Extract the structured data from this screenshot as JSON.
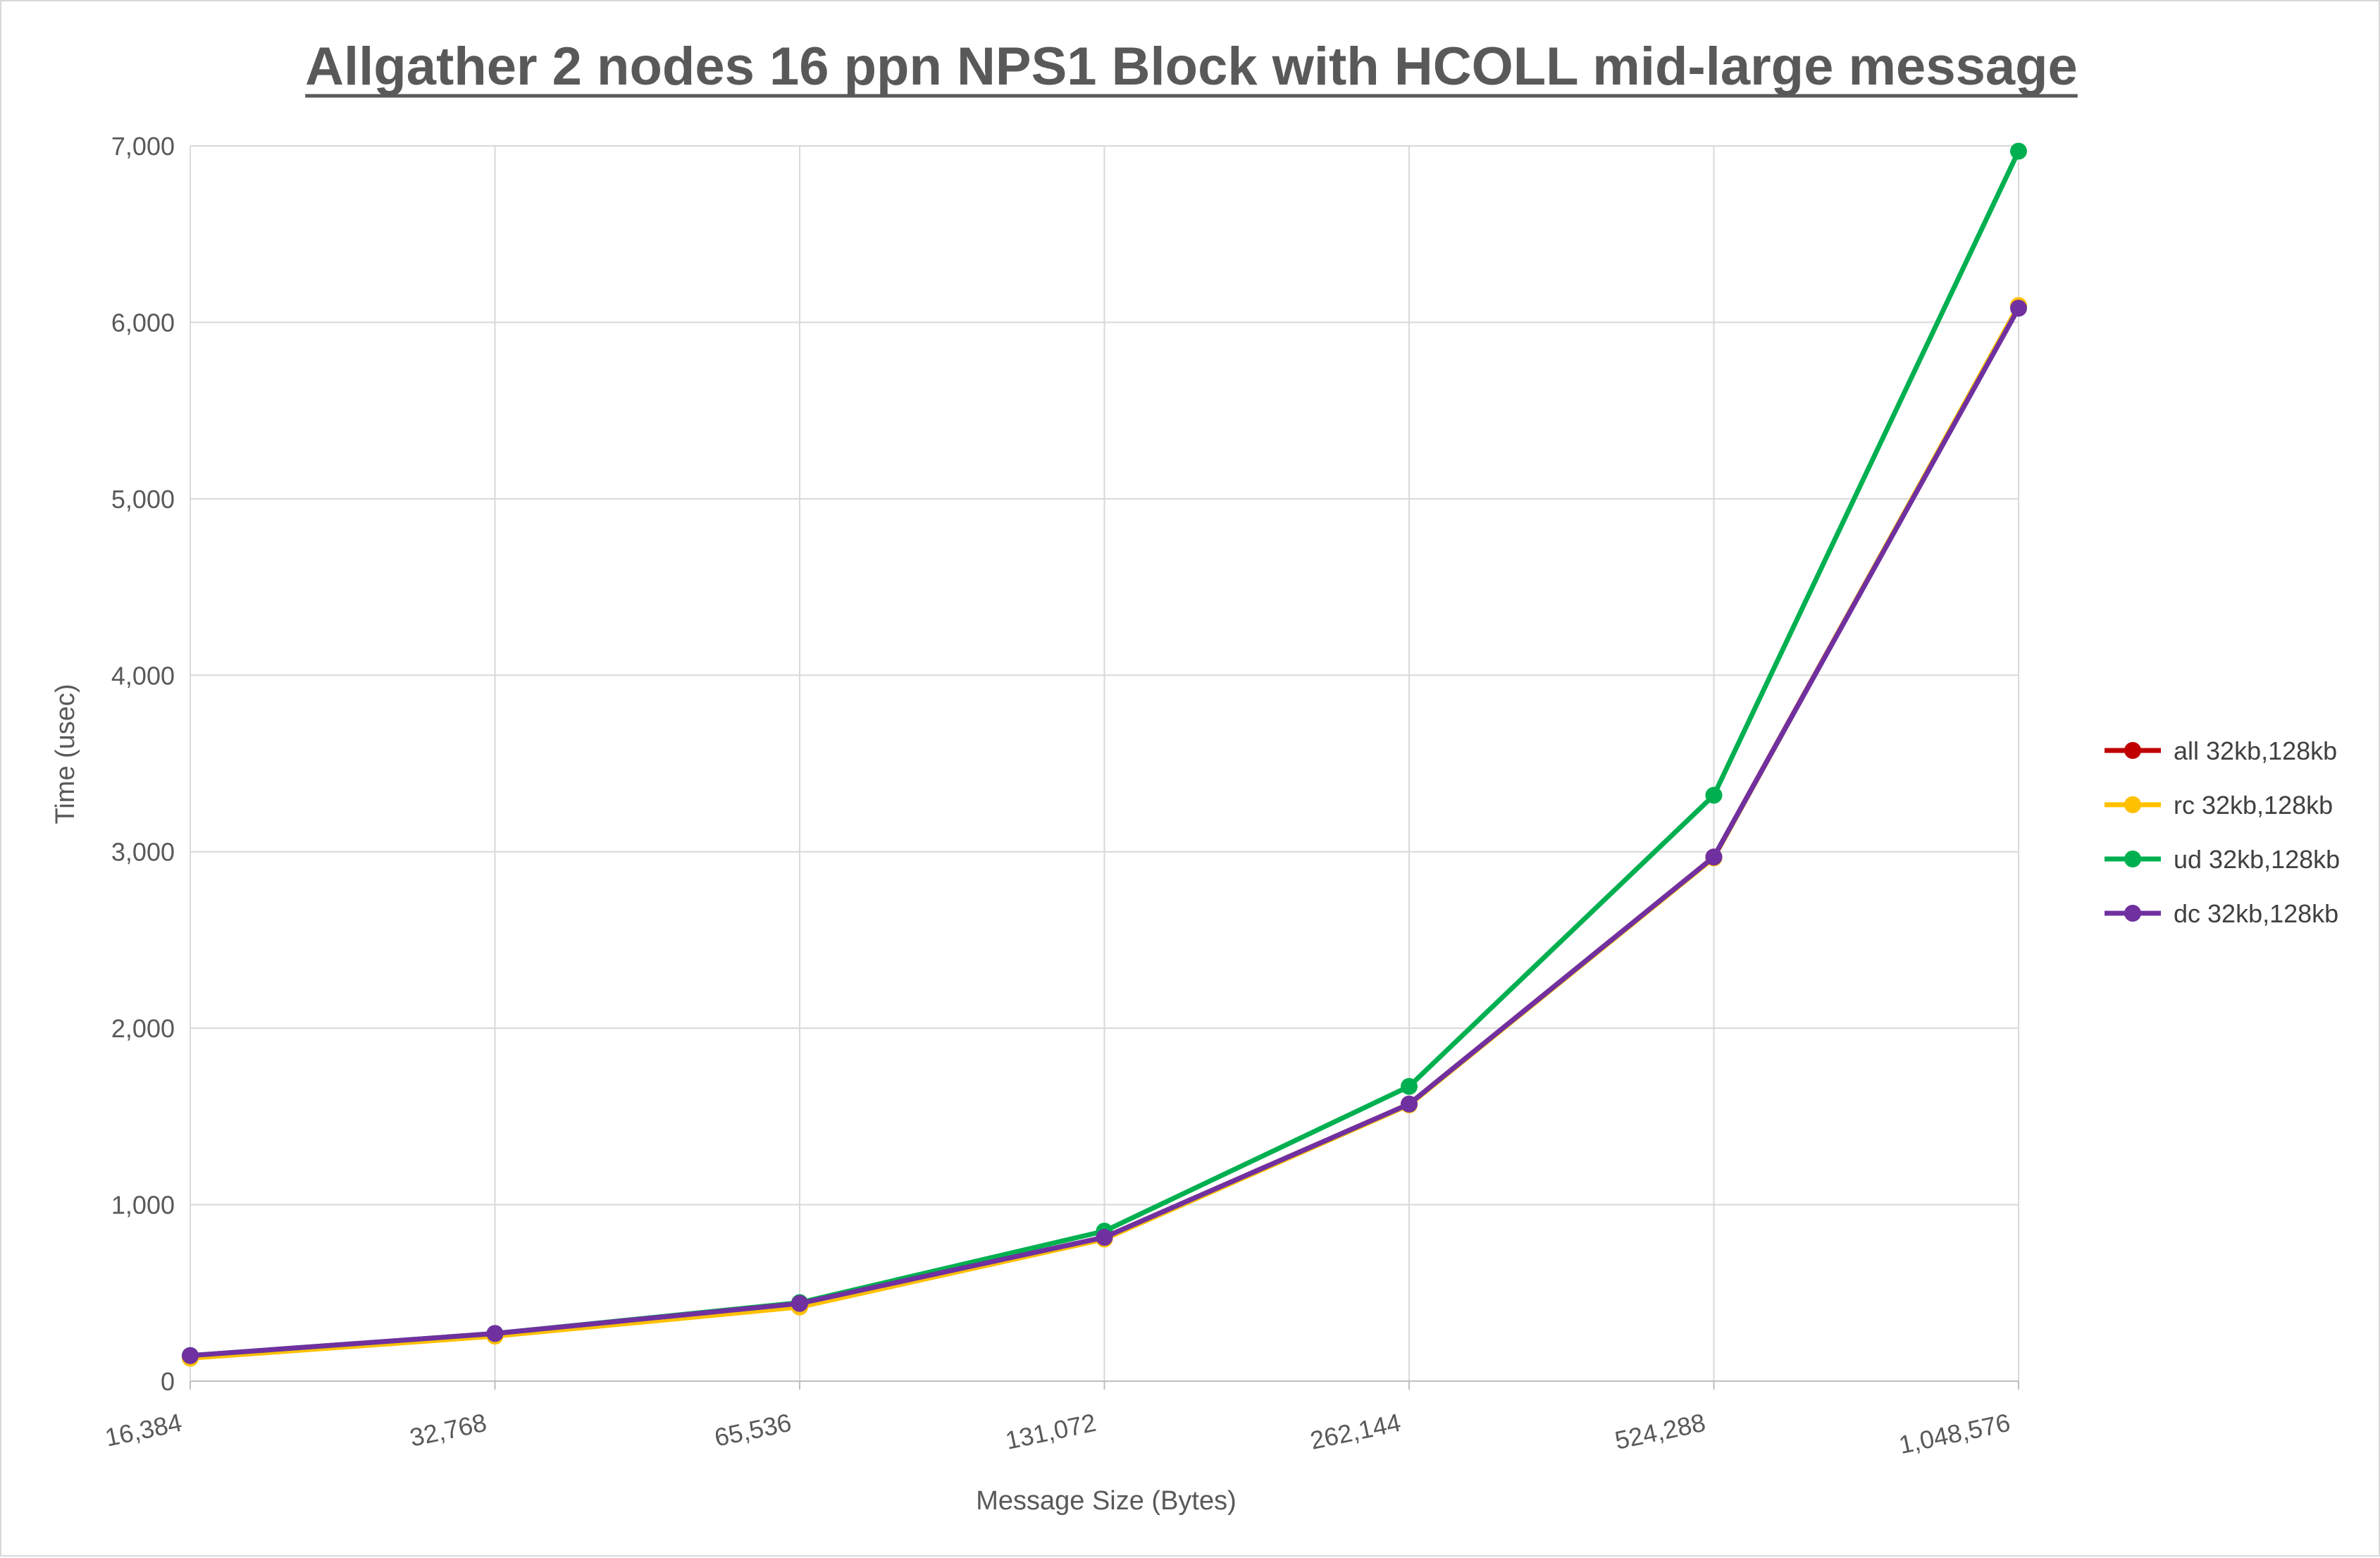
{
  "chart_data": {
    "type": "line",
    "title": "Allgather 2 nodes 16 ppn NPS1 Block with HCOLL mid-large message",
    "xlabel": "Message Size (Bytes)",
    "ylabel": "Time (usec)",
    "categories": [
      "16,384",
      "32,768",
      "65,536",
      "131,072",
      "262,144",
      "524,288",
      "1,048,576"
    ],
    "ylim": [
      0,
      7000
    ],
    "yticks": [
      0,
      1000,
      2000,
      3000,
      4000,
      5000,
      6000,
      7000
    ],
    "ytick_labels": [
      "0",
      "1,000",
      "2,000",
      "3,000",
      "4,000",
      "5,000",
      "6,000",
      "7,000"
    ],
    "grid": true,
    "legend_position": "right",
    "series": [
      {
        "name": "all 32kb,128kb",
        "color": "#c00000",
        "values": [
          140,
          265,
          435,
          815,
          1570,
          2970,
          6090
        ]
      },
      {
        "name": "rc 32kb,128kb",
        "color": "#ffc000",
        "values": [
          130,
          255,
          420,
          805,
          1565,
          2965,
          6095
        ]
      },
      {
        "name": "ud 32kb,128kb",
        "color": "#00b050",
        "values": [
          145,
          270,
          445,
          850,
          1670,
          3320,
          6970
        ]
      },
      {
        "name": "dc 32kb,128kb",
        "color": "#7030a0",
        "values": [
          145,
          270,
          440,
          815,
          1570,
          2970,
          6080
        ]
      }
    ]
  }
}
